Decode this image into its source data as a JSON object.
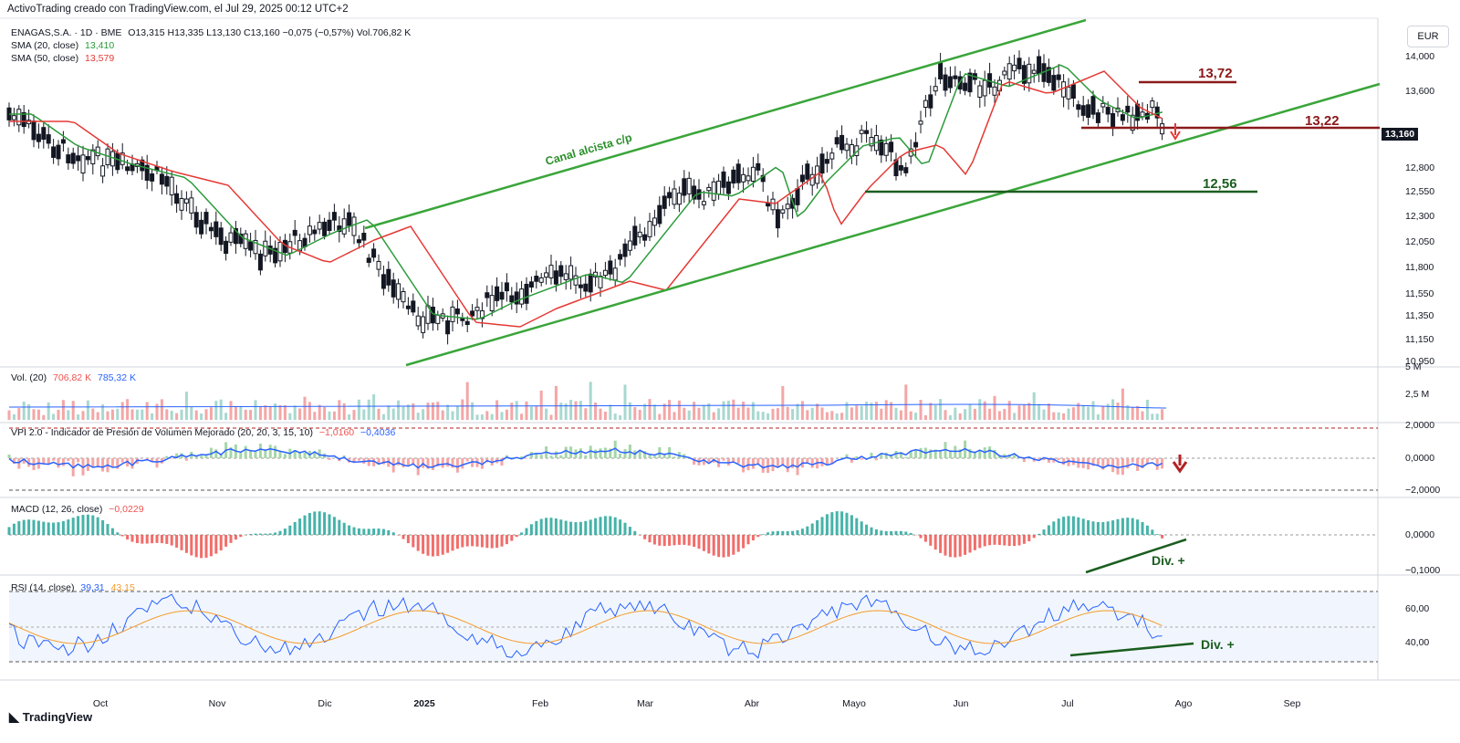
{
  "header": {
    "title": "ActivoTrading creado con TradingView.com, el Jul 29, 2025 00:12 UTC+2"
  },
  "symbol_legend": {
    "symbol": "ENAGAS,S.A. · 1D · BME",
    "ohlc": "O13,315  H13,335  L13,130  C13,160  −0,075 (−0,57%)  Vol.706,82 K",
    "sma20_label": "SMA (20, close)",
    "sma20_value": "13,410",
    "sma50_label": "SMA (50, close)",
    "sma50_value": "13,579"
  },
  "currency_button": "EUR",
  "price_axis": [
    "14,000",
    "13,600",
    "12,800",
    "12,550",
    "12,300",
    "12,050",
    "11,800",
    "11,550",
    "11,350",
    "11,150",
    "10,950"
  ],
  "current_price": "13,160",
  "annotations": {
    "level_high": "13,72",
    "level_mid": "13,22",
    "level_low": "12,56",
    "channel": "Canal alcista c/p",
    "div_macd": "Div. +",
    "div_rsi": "Div. +"
  },
  "volume_panel": {
    "label": "Vol. (20)",
    "value1": "706,82 K",
    "value2": "785,32 K",
    "axis": [
      "5 M",
      "2,5 M"
    ]
  },
  "vpi_panel": {
    "label": "VPI 2.0 - Indicador de Presión de Volumen Mejorado (20, 20, 3, 15, 10)",
    "value1": "−1,0160",
    "value2": "−0,4036",
    "axis": [
      "2,0000",
      "0,0000",
      "−2,0000"
    ]
  },
  "macd_panel": {
    "label": "MACD (12, 26, close)",
    "value": "−0,0229",
    "axis": [
      "0,0000",
      "−0,1000"
    ]
  },
  "rsi_panel": {
    "label": "RSI (14, close)",
    "value1": "39,31",
    "value2": "43,15",
    "axis": [
      "60,00",
      "40,00"
    ]
  },
  "time_axis": [
    "Oct",
    "Nov",
    "Dic",
    "2025",
    "Feb",
    "Mar",
    "Abr",
    "Mayo",
    "Jun",
    "Jul",
    "Ago",
    "Sep"
  ],
  "footer": "TradingView",
  "colors": {
    "green_line": "#2a9a3a",
    "red_line": "#e53935",
    "dark_red": "#8b1a1a",
    "dark_green": "#1b5e20",
    "teal": "#26a69a",
    "bear": "#ef5350",
    "blue": "#2962ff",
    "orange": "#f59b2b"
  }
}
